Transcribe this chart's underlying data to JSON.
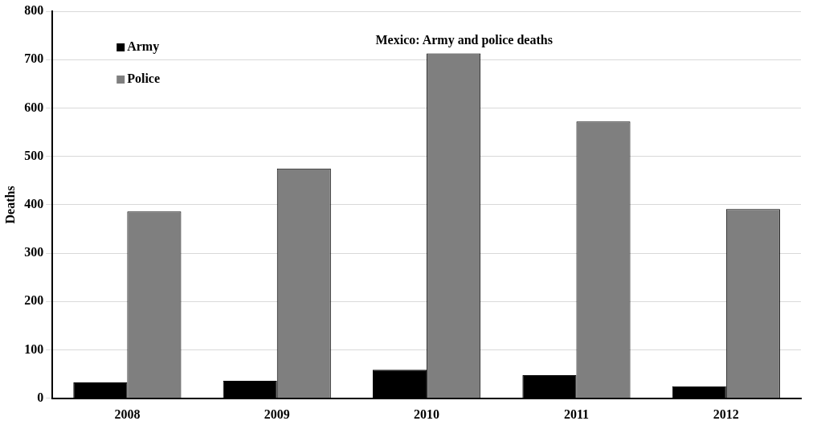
{
  "chart_data": {
    "type": "bar",
    "title": "Mexico: Army and police deaths",
    "ylabel": "Deaths",
    "categories": [
      "2008",
      "2009",
      "2010",
      "2011",
      "2012"
    ],
    "series": [
      {
        "name": "Army",
        "color": "#000000",
        "values": [
          33,
          36,
          59,
          48,
          25
        ]
      },
      {
        "name": "Police",
        "color": "#7f7f7f",
        "values": [
          386,
          475,
          713,
          572,
          391
        ]
      }
    ],
    "ylim": [
      0,
      800
    ],
    "yticks": [
      0,
      100,
      200,
      300,
      400,
      500,
      600,
      700,
      800
    ],
    "grid": "y",
    "legend": "top left"
  }
}
